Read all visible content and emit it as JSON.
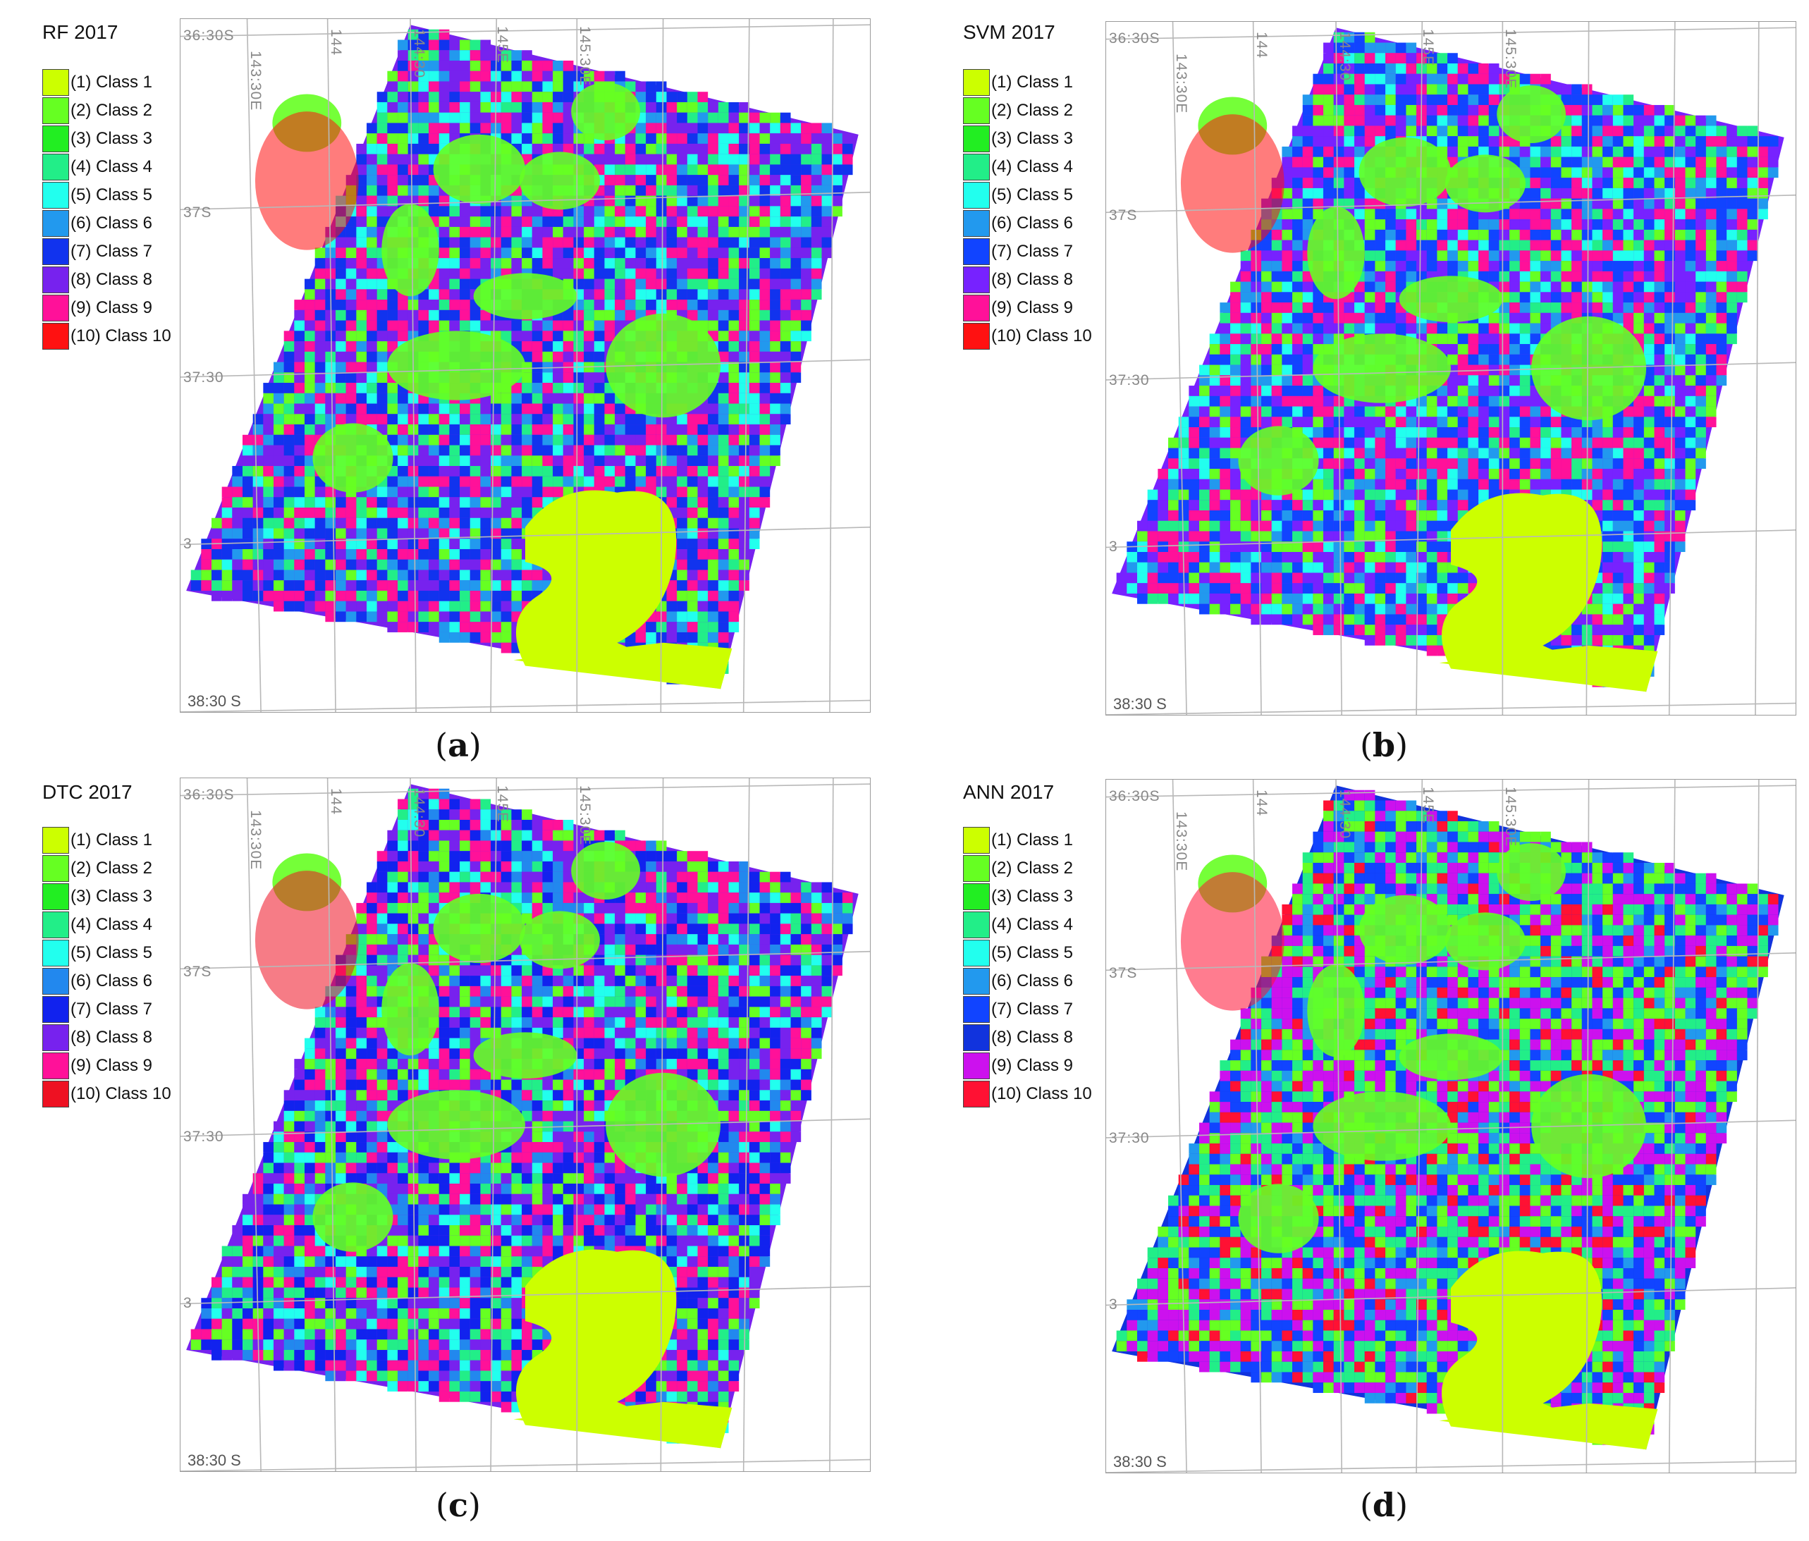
{
  "panels": [
    {
      "id": "a",
      "title": "RF 2017",
      "caption_letter": "a",
      "legend": [
        {
          "label": "(1) Class 1",
          "color": "#ccff00"
        },
        {
          "label": "(2) Class 2",
          "color": "#66ff22"
        },
        {
          "label": "(3) Class 3",
          "color": "#22ee22"
        },
        {
          "label": "(4) Class 4",
          "color": "#22ee88"
        },
        {
          "label": "(5) Class 5",
          "color": "#22ffee"
        },
        {
          "label": "(6) Class 6",
          "color": "#2299ee"
        },
        {
          "label": "(7) Class 7",
          "color": "#1133ee"
        },
        {
          "label": "(8) Class 8",
          "color": "#7722ee"
        },
        {
          "label": "(9) Class 9",
          "color": "#ff1199"
        },
        {
          "label": "(10) Class 10",
          "color": "#ff1111"
        }
      ]
    },
    {
      "id": "b",
      "title": "SVM 2017",
      "caption_letter": "b",
      "legend": [
        {
          "label": "(1) Class 1",
          "color": "#ccff00"
        },
        {
          "label": "(2) Class 2",
          "color": "#66ff22"
        },
        {
          "label": "(3) Class 3",
          "color": "#22ee22"
        },
        {
          "label": "(4) Class 4",
          "color": "#22ee88"
        },
        {
          "label": "(5) Class 5",
          "color": "#22ffee"
        },
        {
          "label": "(6) Class 6",
          "color": "#2299ee"
        },
        {
          "label": "(7) Class 7",
          "color": "#1144ff"
        },
        {
          "label": "(8) Class 8",
          "color": "#7722ff"
        },
        {
          "label": "(9) Class 9",
          "color": "#ff1199"
        },
        {
          "label": "(10) Class 10",
          "color": "#ff1111"
        }
      ]
    },
    {
      "id": "c",
      "title": "DTC 2017",
      "caption_letter": "c",
      "legend": [
        {
          "label": "(1) Class 1",
          "color": "#ccff00"
        },
        {
          "label": "(2) Class 2",
          "color": "#66ff22"
        },
        {
          "label": "(3) Class 3",
          "color": "#22ee22"
        },
        {
          "label": "(4) Class 4",
          "color": "#22ee88"
        },
        {
          "label": "(5) Class 5",
          "color": "#22ffee"
        },
        {
          "label": "(6) Class 6",
          "color": "#2288ee"
        },
        {
          "label": "(7) Class 7",
          "color": "#1122ee"
        },
        {
          "label": "(8) Class 8",
          "color": "#7722ee"
        },
        {
          "label": "(9) Class 9",
          "color": "#ff1199"
        },
        {
          "label": "(10) Class 10",
          "color": "#ee1122"
        }
      ]
    },
    {
      "id": "d",
      "title": "ANN 2017",
      "caption_letter": "d",
      "legend": [
        {
          "label": "(1) Class 1",
          "color": "#ccff00"
        },
        {
          "label": "(2) Class 2",
          "color": "#66ff22"
        },
        {
          "label": "(3) Class 3",
          "color": "#22ee22"
        },
        {
          "label": "(4) Class 4",
          "color": "#22ee88"
        },
        {
          "label": "(5) Class 5",
          "color": "#22ffee"
        },
        {
          "label": "(6) Class 6",
          "color": "#2299ee"
        },
        {
          "label": "(7) Class 7",
          "color": "#1144ff"
        },
        {
          "label": "(8) Class 8",
          "color": "#1133dd"
        },
        {
          "label": "(9) Class 9",
          "color": "#cc11ee"
        },
        {
          "label": "(10) Class 10",
          "color": "#ff1133"
        }
      ]
    }
  ],
  "grid_labels": {
    "lat_top": "36:30S",
    "lat_37": "37S",
    "lat_3730": "37:30",
    "lat_38": "3",
    "lat_bottom": "38:30 S",
    "lon_1": "143:30E",
    "lon_2": "144",
    "lon_3": "144:30",
    "lon_4": "145E",
    "lon_5": "145:30E"
  },
  "colors": {
    "bay": "#ccff00",
    "grid": "#b8b8b8",
    "frame": "#9a9a9a"
  }
}
